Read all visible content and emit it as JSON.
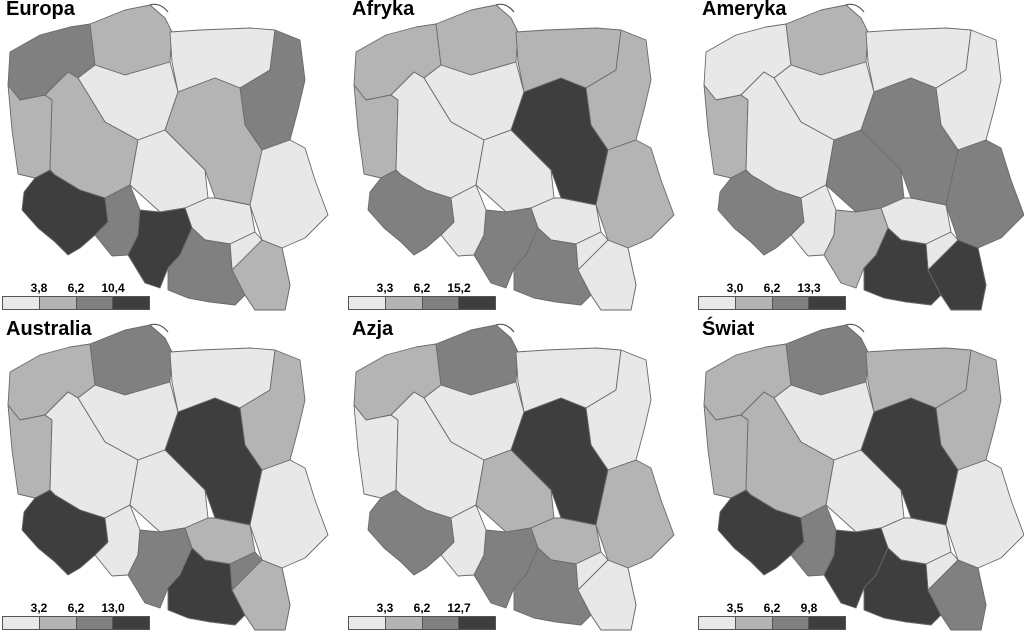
{
  "colors": {
    "c1": "#e8e8e8",
    "c2": "#b4b4b4",
    "c3": "#808080",
    "c4": "#3e3e3e",
    "border": "#6a6a6a"
  },
  "panels": [
    {
      "title": "Europa",
      "legend": [
        "3,8",
        "6,2",
        "10,4"
      ],
      "classes": [
        3,
        2,
        1,
        2,
        2,
        1,
        3,
        2,
        1,
        1,
        1,
        1,
        4,
        3,
        4,
        3,
        2
      ]
    },
    {
      "title": "Afryka",
      "legend": [
        "3,3",
        "6,2",
        "15,2"
      ],
      "classes": [
        2,
        2,
        1,
        2,
        1,
        2,
        2,
        4,
        1,
        2,
        1,
        1,
        3,
        1,
        3,
        3,
        1
      ]
    },
    {
      "title": "Ameryka",
      "legend": [
        "3,0",
        "6,2",
        "13,3"
      ],
      "classes": [
        1,
        2,
        1,
        2,
        1,
        1,
        1,
        3,
        3,
        3,
        1,
        1,
        3,
        1,
        2,
        4,
        4
      ]
    },
    {
      "title": "Australia",
      "legend": [
        "3,2",
        "6,2",
        "13,0"
      ],
      "classes": [
        2,
        3,
        1,
        2,
        1,
        1,
        2,
        4,
        1,
        1,
        2,
        3,
        4,
        1,
        3,
        4,
        2
      ]
    },
    {
      "title": "Azja",
      "legend": [
        "3,3",
        "6,2",
        "12,7"
      ],
      "classes": [
        2,
        3,
        1,
        1,
        1,
        1,
        1,
        4,
        2,
        2,
        2,
        1,
        3,
        1,
        3,
        3,
        1
      ]
    },
    {
      "title": "Świat",
      "legend": [
        "3,5",
        "6,2",
        "9,8"
      ],
      "classes": [
        2,
        3,
        1,
        2,
        2,
        2,
        2,
        4,
        1,
        1,
        1,
        1,
        4,
        3,
        4,
        4,
        3
      ]
    }
  ]
}
